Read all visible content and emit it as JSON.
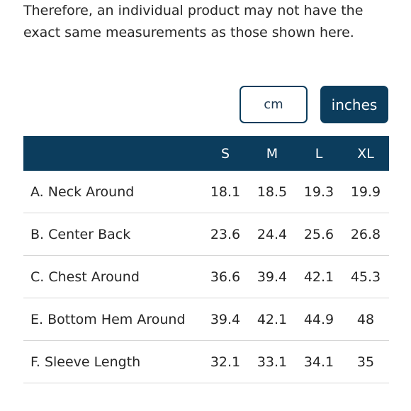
{
  "intro": {
    "line1": "Therefore, an individual product may not have the",
    "line2": "exact same measurements as those shown here."
  },
  "unit_toggle": {
    "options": [
      "cm",
      "inches"
    ],
    "selected": "inches"
  },
  "colors": {
    "accent": "#0c3d5d",
    "row_divider": "#d6d6d6"
  },
  "size_chart": {
    "header_label": "",
    "sizes": [
      "S",
      "M",
      "L",
      "XL"
    ],
    "rows": [
      {
        "label": "A. Neck Around",
        "values": [
          "18.1",
          "18.5",
          "19.3",
          "19.9"
        ]
      },
      {
        "label": "B. Center Back",
        "values": [
          "23.6",
          "24.4",
          "25.6",
          "26.8"
        ]
      },
      {
        "label": "C. Chest Around",
        "values": [
          "36.6",
          "39.4",
          "42.1",
          "45.3"
        ]
      },
      {
        "label": "E. Bottom Hem Around",
        "values": [
          "39.4",
          "42.1",
          "44.9",
          "48"
        ]
      },
      {
        "label": "F. Sleeve Length",
        "values": [
          "32.1",
          "33.1",
          "34.1",
          "35"
        ]
      }
    ]
  }
}
